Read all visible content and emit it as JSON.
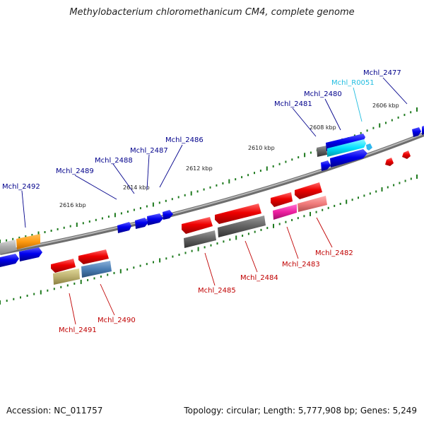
{
  "title": "Methylobacterium chloromethanicum CM4, complete genome",
  "footer": {
    "accession": "Accession: NC_011757",
    "topology": "Topology: circular; Length: 5,777,908 bp; Genes: 5,249"
  },
  "colors": {
    "backbone": "#808080",
    "tick": "#1e7a1e",
    "forward_label": "#00008b",
    "reverse_label": "#c00000",
    "rna_label": "#22bde0"
  },
  "kbp_labels": [
    "2606 kbp",
    "2608 kbp",
    "2610 kbp",
    "2612 kbp",
    "2614 kbp",
    "2616 kbp"
  ],
  "gene_labels": [
    "Mchl_2477",
    "Mchl_R0051",
    "Mchl_2480",
    "Mchl_2481",
    "Mchl_2486",
    "Mchl_2487",
    "Mchl_2488",
    "Mchl_2489",
    "Mchl_2492",
    "Mchl_2482",
    "Mchl_2483",
    "Mchl_2484",
    "Mchl_2485",
    "Mchl_2490",
    "Mchl_2491"
  ]
}
